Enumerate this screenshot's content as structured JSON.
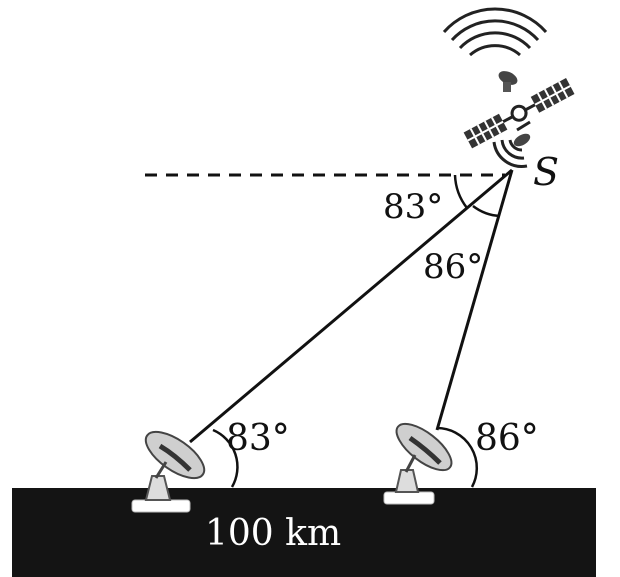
{
  "labels": {
    "satellite": "S",
    "angle_at_satellite_outer": "83°",
    "angle_at_satellite_inner": "86°",
    "angle_left_station": "83°",
    "angle_right_station": "86°",
    "distance": "100 km"
  },
  "colors": {
    "ground": "#141414",
    "ink": "#111111",
    "label_on_ground": "#ffffff",
    "background": "#ffffff"
  },
  "icons": {
    "satellite": "satellite-icon",
    "left_station": "satellite-dish-icon",
    "right_station": "satellite-dish-icon"
  }
}
